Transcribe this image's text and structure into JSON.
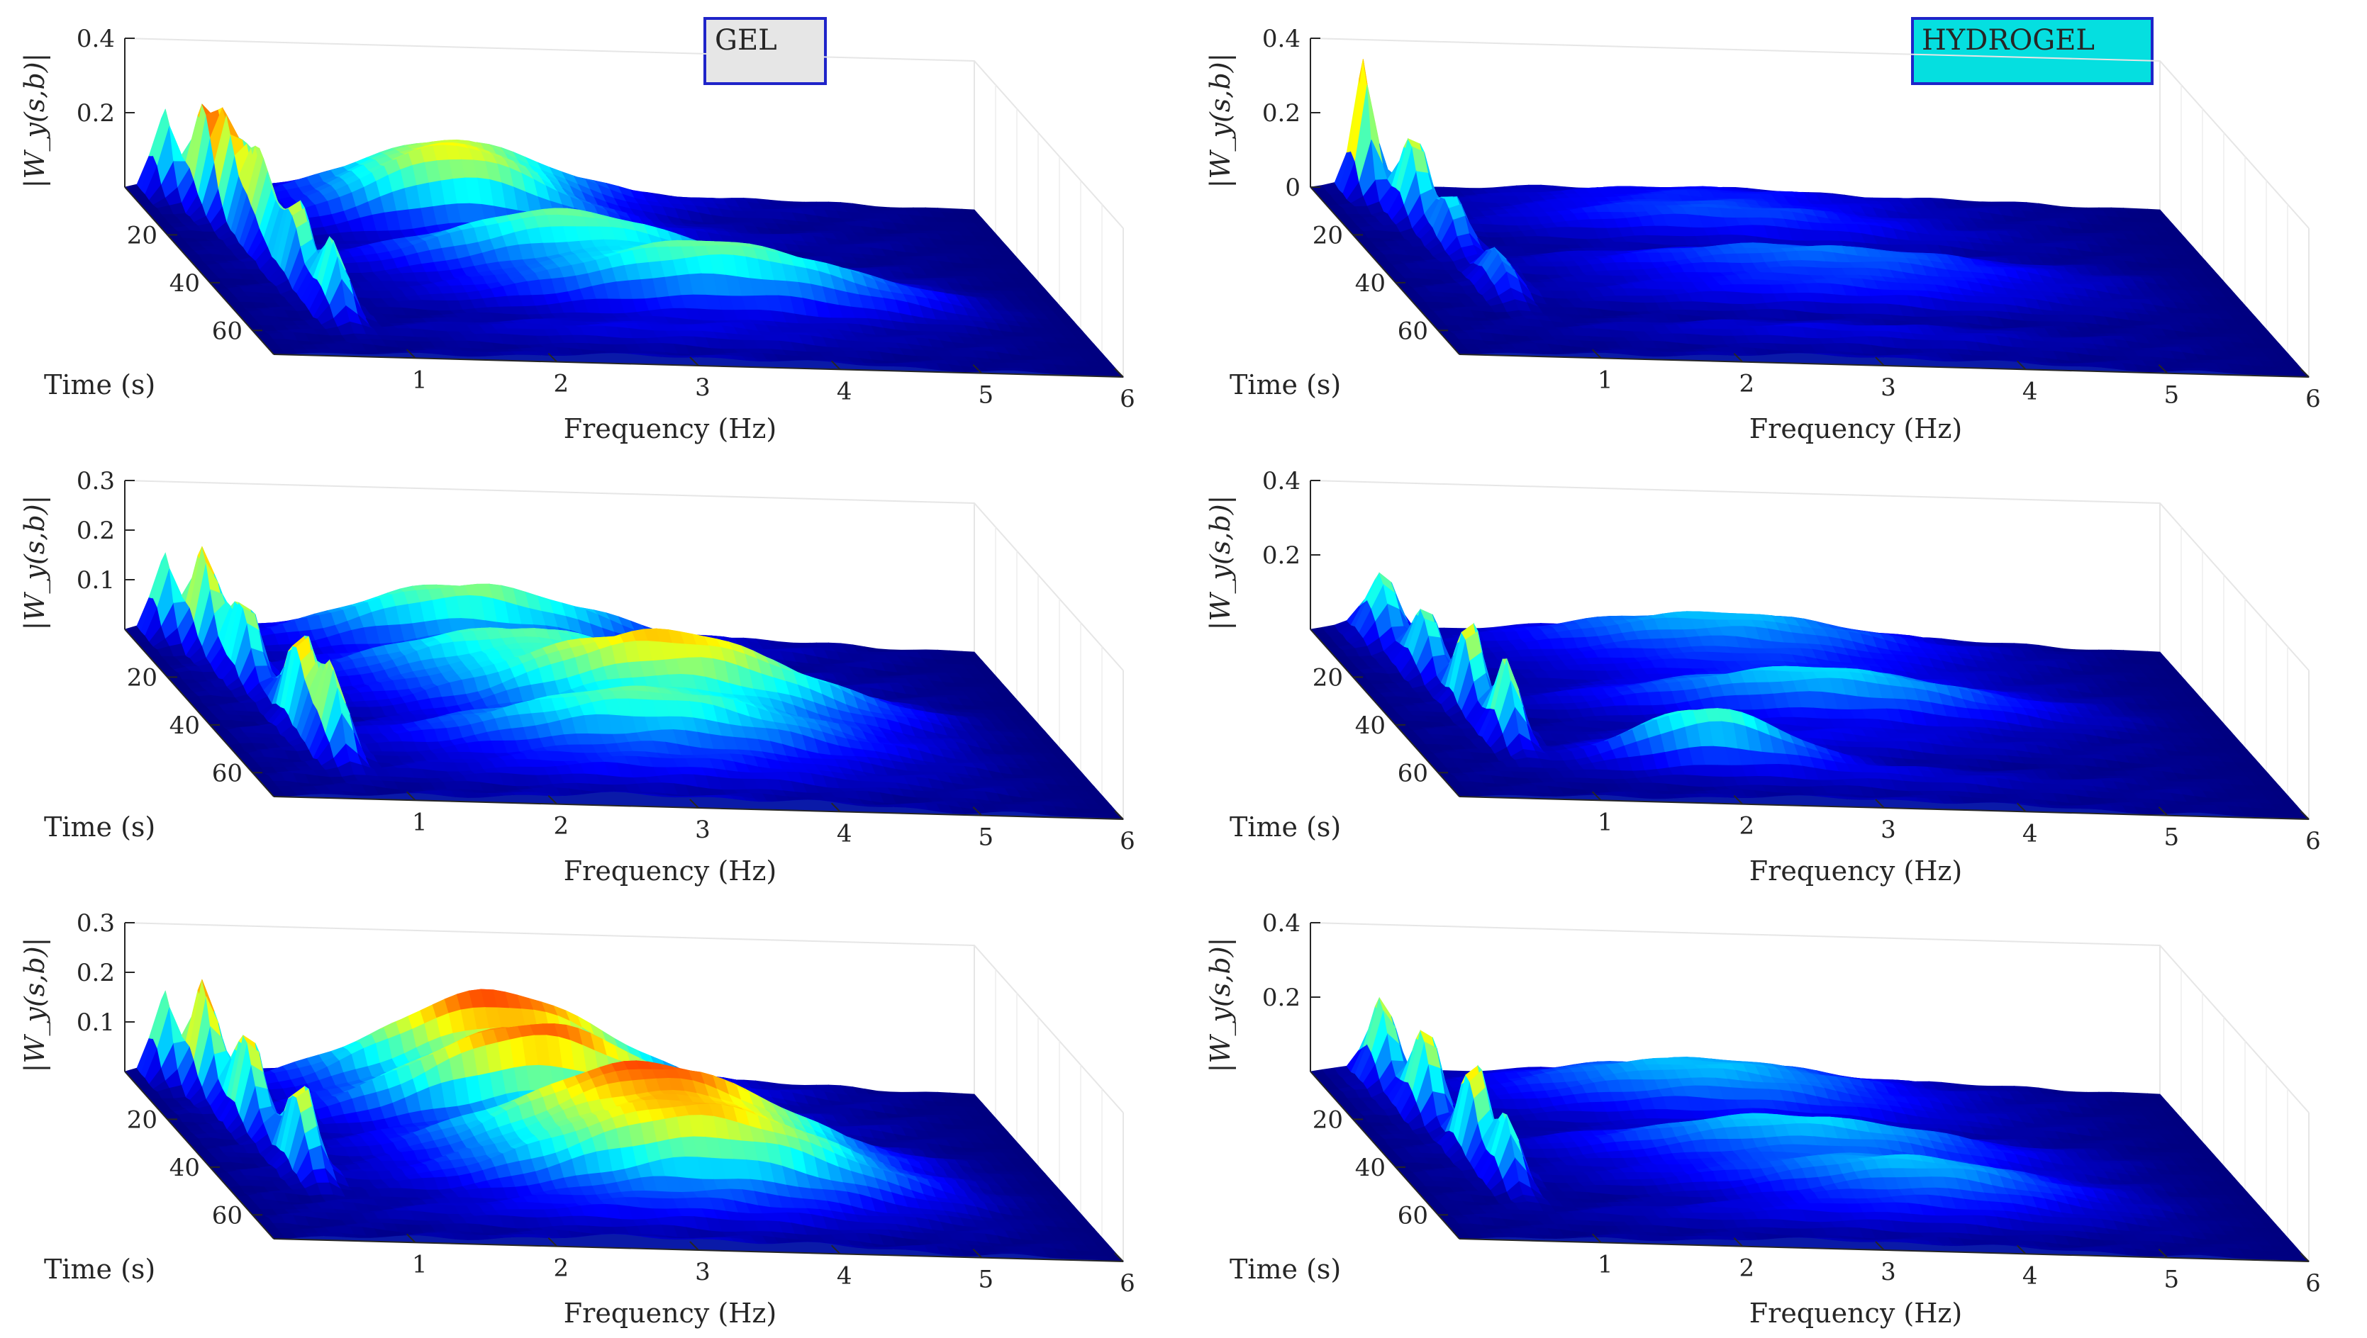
{
  "figure": {
    "legends": [
      {
        "label": "GEL",
        "fill": "#e6e6e6",
        "edge": "#1f24c9"
      },
      {
        "label": "HYDROGEL",
        "fill": "#05dfe0",
        "edge": "#1f24c9"
      }
    ],
    "colormap": "jet"
  },
  "chart_data": [
    {
      "type": "surface3d",
      "group": "GEL",
      "row": 1,
      "xlabel": "Frequency (Hz)",
      "ylabel": "Time (s)",
      "zlabel": "|W_y(s,b)|",
      "x_ticks": [
        "1",
        "2",
        "3",
        "4",
        "5",
        "6"
      ],
      "y_ticks": [
        "20",
        "40",
        "60"
      ],
      "z_ticks": [
        "0.2",
        "0.4"
      ],
      "xlim": [
        0,
        6
      ],
      "ylim": [
        0,
        70
      ],
      "zlim": [
        0,
        0.4
      ],
      "peaks": [
        {
          "f": 0.25,
          "t": 2,
          "a": 0.22,
          "sf": 0.06,
          "st": 3
        },
        {
          "f": 0.45,
          "t": 8,
          "a": 0.26,
          "sf": 0.07,
          "st": 4
        },
        {
          "f": 0.55,
          "t": 14,
          "a": 0.22,
          "sf": 0.07,
          "st": 4
        },
        {
          "f": 0.6,
          "t": 24,
          "a": 0.24,
          "sf": 0.07,
          "st": 5
        },
        {
          "f": 0.65,
          "t": 38,
          "a": 0.22,
          "sf": 0.07,
          "st": 5
        },
        {
          "f": 0.7,
          "t": 52,
          "a": 0.2,
          "sf": 0.07,
          "st": 4
        },
        {
          "f": 2.2,
          "t": 6,
          "a": 0.14,
          "sf": 0.7,
          "st": 4
        },
        {
          "f": 2.1,
          "t": 14,
          "a": 0.18,
          "sf": 0.6,
          "st": 4
        },
        {
          "f": 2.6,
          "t": 32,
          "a": 0.13,
          "sf": 0.8,
          "st": 5
        },
        {
          "f": 3.6,
          "t": 44,
          "a": 0.14,
          "sf": 0.9,
          "st": 5
        }
      ]
    },
    {
      "type": "surface3d",
      "group": "HYDROGEL",
      "row": 1,
      "xlabel": "Frequency (Hz)",
      "ylabel": "Time (s)",
      "zlabel": "|W_y(s,b)|",
      "x_ticks": [
        "1",
        "2",
        "3",
        "4",
        "5",
        "6"
      ],
      "y_ticks": [
        "20",
        "40",
        "60"
      ],
      "z_ticks": [
        "0",
        "0.2",
        "0.4"
      ],
      "xlim": [
        0,
        6
      ],
      "ylim": [
        0,
        70
      ],
      "zlim": [
        0,
        0.4
      ],
      "peaks": [
        {
          "f": 0.35,
          "t": 2,
          "a": 0.36,
          "sf": 0.06,
          "st": 3
        },
        {
          "f": 0.55,
          "t": 12,
          "a": 0.22,
          "sf": 0.08,
          "st": 4
        },
        {
          "f": 0.65,
          "t": 24,
          "a": 0.14,
          "sf": 0.08,
          "st": 4
        },
        {
          "f": 0.7,
          "t": 42,
          "a": 0.1,
          "sf": 0.08,
          "st": 5
        },
        {
          "f": 2.6,
          "t": 12,
          "a": 0.05,
          "sf": 1.0,
          "st": 5
        },
        {
          "f": 3.2,
          "t": 36,
          "a": 0.06,
          "sf": 1.1,
          "st": 6
        }
      ]
    },
    {
      "type": "surface3d",
      "group": "GEL",
      "row": 2,
      "xlabel": "Frequency (Hz)",
      "ylabel": "Time (s)",
      "zlabel": "|W_y(s,b)|",
      "x_ticks": [
        "1",
        "2",
        "3",
        "4",
        "5",
        "6"
      ],
      "y_ticks": [
        "20",
        "40",
        "60"
      ],
      "z_ticks": [
        "0.1",
        "0.2",
        "0.3"
      ],
      "xlim": [
        0,
        6
      ],
      "ylim": [
        0,
        70
      ],
      "zlim": [
        0,
        0.3
      ],
      "peaks": [
        {
          "f": 0.25,
          "t": 2,
          "a": 0.16,
          "sf": 0.06,
          "st": 3
        },
        {
          "f": 0.45,
          "t": 8,
          "a": 0.2,
          "sf": 0.07,
          "st": 4
        },
        {
          "f": 0.55,
          "t": 20,
          "a": 0.16,
          "sf": 0.07,
          "st": 5
        },
        {
          "f": 0.65,
          "t": 40,
          "a": 0.2,
          "sf": 0.07,
          "st": 5
        },
        {
          "f": 0.7,
          "t": 52,
          "a": 0.17,
          "sf": 0.07,
          "st": 4
        },
        {
          "f": 2.3,
          "t": 6,
          "a": 0.11,
          "sf": 0.8,
          "st": 4
        },
        {
          "f": 2.4,
          "t": 22,
          "a": 0.1,
          "sf": 0.8,
          "st": 5
        },
        {
          "f": 3.4,
          "t": 34,
          "a": 0.15,
          "sf": 0.9,
          "st": 5
        },
        {
          "f": 3.0,
          "t": 48,
          "a": 0.09,
          "sf": 1.0,
          "st": 5
        }
      ]
    },
    {
      "type": "surface3d",
      "group": "HYDROGEL",
      "row": 2,
      "xlabel": "Frequency (Hz)",
      "ylabel": "Time (s)",
      "zlabel": "|W_y(s,b)|",
      "x_ticks": [
        "1",
        "2",
        "3",
        "4",
        "5",
        "6"
      ],
      "y_ticks": [
        "20",
        "40",
        "60"
      ],
      "z_ticks": [
        "0.2",
        "0.4"
      ],
      "xlim": [
        0,
        6
      ],
      "ylim": [
        0,
        70
      ],
      "zlim": [
        0,
        0.4
      ],
      "peaks": [
        {
          "f": 0.45,
          "t": 4,
          "a": 0.17,
          "sf": 0.1,
          "st": 4
        },
        {
          "f": 0.55,
          "t": 18,
          "a": 0.18,
          "sf": 0.08,
          "st": 4
        },
        {
          "f": 0.65,
          "t": 32,
          "a": 0.24,
          "sf": 0.07,
          "st": 4
        },
        {
          "f": 0.7,
          "t": 46,
          "a": 0.22,
          "sf": 0.07,
          "st": 4
        },
        {
          "f": 2.8,
          "t": 8,
          "a": 0.09,
          "sf": 1.0,
          "st": 5
        },
        {
          "f": 2.0,
          "t": 54,
          "a": 0.15,
          "sf": 0.5,
          "st": 3
        },
        {
          "f": 3.2,
          "t": 30,
          "a": 0.09,
          "sf": 1.0,
          "st": 6
        }
      ]
    },
    {
      "type": "surface3d",
      "group": "GEL",
      "row": 3,
      "xlabel": "Frequency (Hz)",
      "ylabel": "Time (s)",
      "zlabel": "|W_y(s,b)|",
      "x_ticks": [
        "1",
        "2",
        "3",
        "4",
        "5",
        "6"
      ],
      "y_ticks": [
        "20",
        "40",
        "60"
      ],
      "z_ticks": [
        "0.1",
        "0.2",
        "0.3"
      ],
      "xlim": [
        0,
        6
      ],
      "ylim": [
        0,
        70
      ],
      "zlim": [
        0,
        0.3
      ],
      "peaks": [
        {
          "f": 0.25,
          "t": 2,
          "a": 0.17,
          "sf": 0.06,
          "st": 3
        },
        {
          "f": 0.45,
          "t": 8,
          "a": 0.22,
          "sf": 0.07,
          "st": 4
        },
        {
          "f": 0.55,
          "t": 22,
          "a": 0.19,
          "sf": 0.07,
          "st": 5
        },
        {
          "f": 0.65,
          "t": 40,
          "a": 0.18,
          "sf": 0.07,
          "st": 5
        },
        {
          "f": 2.5,
          "t": 8,
          "a": 0.2,
          "sf": 0.8,
          "st": 4
        },
        {
          "f": 2.6,
          "t": 20,
          "a": 0.18,
          "sf": 0.8,
          "st": 4
        },
        {
          "f": 3.2,
          "t": 36,
          "a": 0.19,
          "sf": 0.9,
          "st": 5
        },
        {
          "f": 3.4,
          "t": 48,
          "a": 0.14,
          "sf": 0.9,
          "st": 5
        }
      ]
    },
    {
      "type": "surface3d",
      "group": "HYDROGEL",
      "row": 3,
      "xlabel": "Frequency (Hz)",
      "ylabel": "Time (s)",
      "zlabel": "|W_y(s,b)|",
      "x_ticks": [
        "1",
        "2",
        "3",
        "4",
        "5",
        "6"
      ],
      "y_ticks": [
        "20",
        "40",
        "60"
      ],
      "z_ticks": [
        "0.2",
        "0.4"
      ],
      "xlim": [
        0,
        6
      ],
      "ylim": [
        0,
        70
      ],
      "zlim": [
        0,
        0.4
      ],
      "peaks": [
        {
          "f": 0.45,
          "t": 4,
          "a": 0.22,
          "sf": 0.08,
          "st": 4
        },
        {
          "f": 0.55,
          "t": 18,
          "a": 0.24,
          "sf": 0.08,
          "st": 4
        },
        {
          "f": 0.65,
          "t": 34,
          "a": 0.26,
          "sf": 0.07,
          "st": 4
        },
        {
          "f": 0.7,
          "t": 46,
          "a": 0.18,
          "sf": 0.07,
          "st": 4
        },
        {
          "f": 2.6,
          "t": 10,
          "a": 0.1,
          "sf": 1.0,
          "st": 5
        },
        {
          "f": 3.0,
          "t": 34,
          "a": 0.09,
          "sf": 1.0,
          "st": 6
        },
        {
          "f": 3.6,
          "t": 50,
          "a": 0.09,
          "sf": 0.8,
          "st": 5
        }
      ]
    }
  ]
}
